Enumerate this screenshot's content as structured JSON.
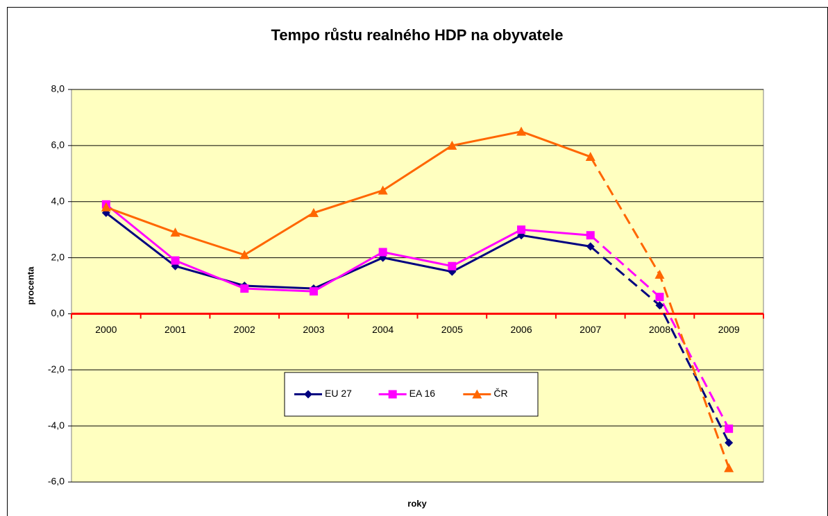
{
  "chart_data": {
    "type": "line",
    "title": "Tempo růstu realného HDP na obyvatele",
    "xlabel": "roky",
    "ylabel": "procenta",
    "categories": [
      "2000",
      "2001",
      "2002",
      "2003",
      "2004",
      "2005",
      "2006",
      "2007",
      "2008",
      "2009"
    ],
    "series": [
      {
        "name": "EU 27",
        "color": "#000080",
        "marker": "diamond",
        "values": [
          3.6,
          1.7,
          1.0,
          0.9,
          2.0,
          1.5,
          2.8,
          2.4,
          0.3,
          -4.6
        ]
      },
      {
        "name": "EA 16",
        "color": "#ff00ff",
        "marker": "square",
        "values": [
          3.9,
          1.9,
          0.9,
          0.8,
          2.2,
          1.7,
          3.0,
          2.8,
          0.6,
          -4.1
        ]
      },
      {
        "name": "ČR",
        "color": "#ff6600",
        "marker": "triangle",
        "values": [
          3.8,
          2.9,
          2.1,
          3.6,
          4.4,
          6.0,
          6.5,
          5.6,
          1.4,
          -5.5
        ]
      }
    ],
    "dashed_from": "2007",
    "ylim": [
      -6,
      8
    ],
    "yticks": [
      {
        "value": -6,
        "label": "-6,0"
      },
      {
        "value": -4,
        "label": "-4,0"
      },
      {
        "value": -2,
        "label": "-2,0"
      },
      {
        "value": 0,
        "label": "0,0"
      },
      {
        "value": 2,
        "label": "2,0"
      },
      {
        "value": 4,
        "label": "4,0"
      },
      {
        "value": 6,
        "label": "6,0"
      },
      {
        "value": 8,
        "label": "8,0"
      }
    ],
    "grid": true,
    "legend": "bottom",
    "background": "#ffffc0",
    "zero_line_color": "#ff0000"
  }
}
